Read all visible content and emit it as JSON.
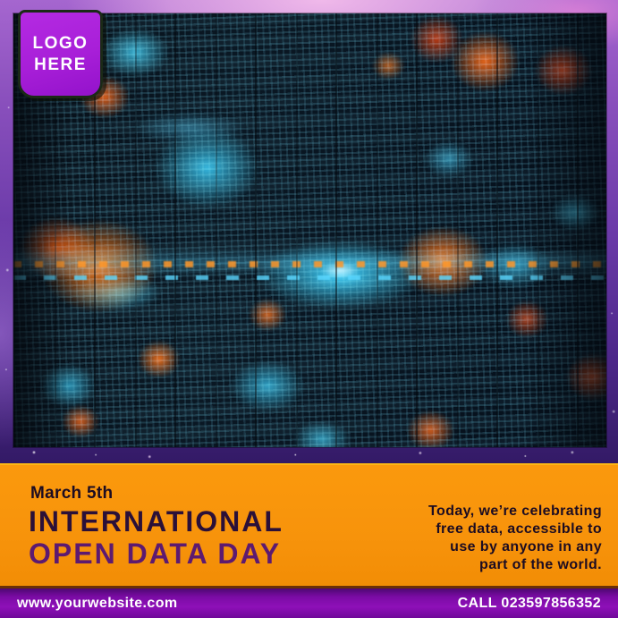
{
  "logo_badge": {
    "lines": [
      "LOGO",
      "HERE"
    ]
  },
  "event": {
    "date": "March 5th",
    "title_line1": "INTERNATIONAL",
    "title_line2": "OPEN DATA DAY",
    "description_lines": [
      "Today, we’re celebrating",
      "free data, accessible to",
      "use by anyone in any",
      "part of the world."
    ]
  },
  "footer": {
    "website": "www.yourwebsite.com",
    "call": "CALL 023597856352"
  },
  "hero_image": {
    "description": "Blurred digital data wall with cyan pixel matrices and orange bokeh lights"
  },
  "colors": {
    "band_orange": "#F7930B",
    "title_dark_purple": "#2B1038",
    "title_purple": "#5D1A70",
    "text_dark": "#1C0C22",
    "badge_purple": "#A81FD8",
    "badge_text": "#FFFFFF",
    "footer_bar_purple": "#8E10B8",
    "footer_text": "#FFFFFF",
    "bokeh_cyan": "#3CD2FF",
    "bokeh_orange": "#FF7A1E",
    "background_purple": "#6A3AA8",
    "background_pink": "#F0B9EA"
  }
}
